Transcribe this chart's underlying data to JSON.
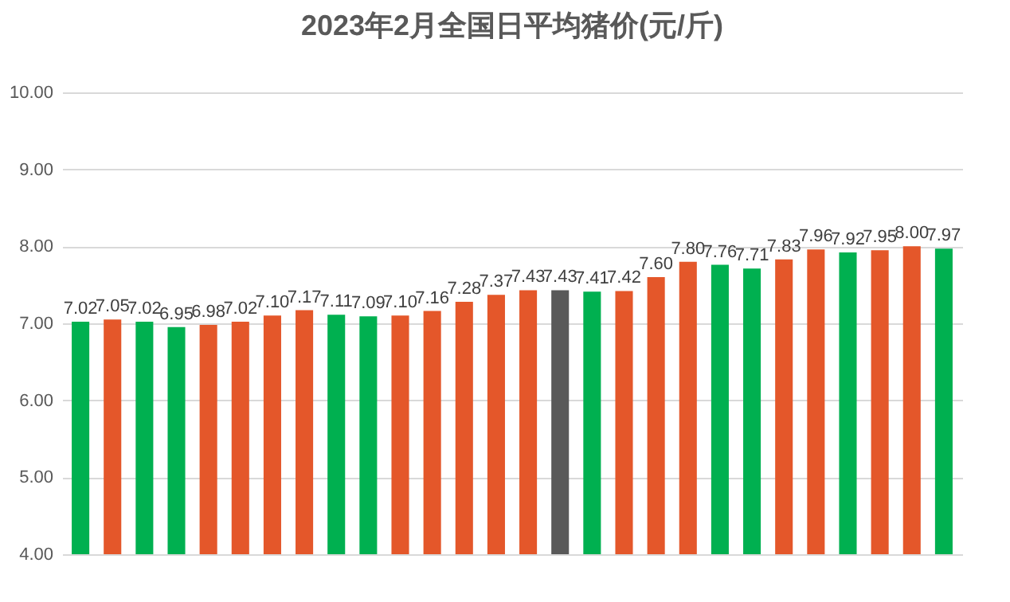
{
  "chart_data": {
    "type": "bar",
    "title": "2023年2月全国日平均猪价(元/斤)",
    "categories": [
      null,
      null,
      null,
      null,
      null,
      null,
      null,
      null,
      null,
      null,
      null,
      null,
      null,
      null,
      null,
      null,
      null,
      null,
      null,
      null,
      null,
      null,
      null,
      null,
      null,
      null,
      null,
      null
    ],
    "values": [
      7.02,
      7.05,
      7.02,
      6.95,
      6.98,
      7.02,
      7.1,
      7.17,
      7.11,
      7.09,
      7.1,
      7.16,
      7.28,
      7.37,
      7.43,
      7.43,
      7.41,
      7.42,
      7.6,
      7.8,
      7.76,
      7.71,
      7.83,
      7.96,
      7.92,
      7.95,
      8.0,
      7.97
    ],
    "value_labels": [
      "7.02",
      "7.05",
      "7.02",
      "6.95",
      "6.98",
      "7.02",
      "7.10",
      "7.17",
      "7.11",
      "7.09",
      "7.10",
      "7.16",
      "7.28",
      "7.37",
      "7.43",
      "7.43",
      "7.41",
      "7.42",
      "7.60",
      "7.80",
      "7.76",
      "7.71",
      "7.83",
      "7.96",
      "7.92",
      "7.95",
      "8.00",
      "7.97"
    ],
    "colors": [
      "#00b050",
      "#e4572a",
      "#00b050",
      "#00b050",
      "#e4572a",
      "#e4572a",
      "#e4572a",
      "#e4572a",
      "#00b050",
      "#00b050",
      "#e4572a",
      "#e4572a",
      "#e4572a",
      "#e4572a",
      "#e4572a",
      "#595959",
      "#00b050",
      "#e4572a",
      "#e4572a",
      "#e4572a",
      "#00b050",
      "#00b050",
      "#e4572a",
      "#e4572a",
      "#00b050",
      "#e4572a",
      "#e4572a",
      "#00b050"
    ],
    "ylim": [
      4,
      10
    ],
    "yticks": [
      {
        "value": 4,
        "label": "4.00"
      },
      {
        "value": 5,
        "label": "5.00"
      },
      {
        "value": 6,
        "label": "6.00"
      },
      {
        "value": 7,
        "label": "7.00"
      },
      {
        "value": 8,
        "label": "8.00"
      },
      {
        "value": 9,
        "label": "9.00"
      },
      {
        "value": 10,
        "label": "10.00"
      }
    ],
    "grid": "y",
    "tick_labels": "y"
  }
}
